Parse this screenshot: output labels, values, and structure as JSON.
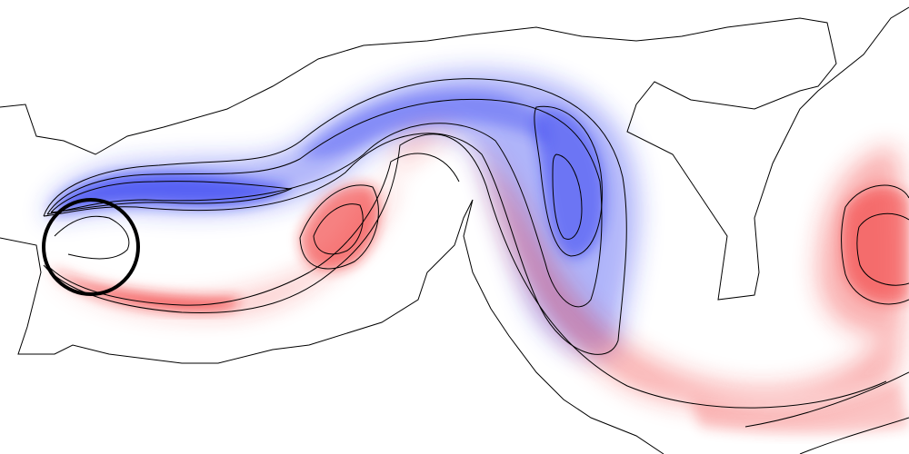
{
  "figure": {
    "caption": "",
    "colormap": {
      "negative": "#1f2bf0",
      "positive": "#f01e1e",
      "zero": "#ffffff",
      "contour_stroke": "#000000"
    },
    "obstacle": {
      "shape": "circle",
      "stroke": "#000000"
    }
  }
}
